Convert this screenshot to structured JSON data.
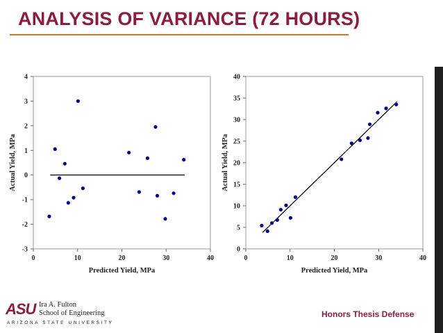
{
  "slide": {
    "title": "ANALYSIS OF VARIANCE (72 HOURS)",
    "footer_right": "Honors Thesis Defense",
    "logo": {
      "mark": "ASU",
      "school_line1": "Ira A. Fulton",
      "school_line2": "School of Engineering",
      "university": "ARIZONA STATE UNIVERSITY"
    }
  },
  "colors": {
    "title": "#8c1d40",
    "rule": "#e36f1e",
    "points": "#00008b",
    "line": "#000000"
  },
  "chart_data": [
    {
      "type": "scatter",
      "title": "",
      "xlabel": "Predicted Yield, MPa",
      "ylabel": "Actual Yield, MPa",
      "xlim": [
        0,
        40
      ],
      "ylim": [
        -3,
        4
      ],
      "xticks": [
        0,
        10,
        20,
        30,
        40
      ],
      "yticks": [
        -3,
        -2,
        -1,
        0,
        1,
        2,
        3,
        4
      ],
      "grid": false,
      "reference_line": {
        "x": [
          3.8,
          34.2
        ],
        "y": [
          0,
          0
        ]
      },
      "series": [
        {
          "x": [
            3.6,
            4.9,
            5.9,
            7.1,
            7.9,
            9.1,
            10.1,
            11.2,
            21.6,
            23.9,
            25.8,
            27.6,
            28.0,
            29.8,
            31.7,
            34.0
          ],
          "y": [
            -1.68,
            1.05,
            -0.13,
            0.46,
            -1.13,
            -0.92,
            3.0,
            -0.54,
            0.91,
            -0.69,
            0.68,
            1.95,
            -0.84,
            -1.78,
            -0.74,
            0.62
          ]
        }
      ]
    },
    {
      "type": "scatter",
      "title": "",
      "xlabel": "Predicted Yield, MPa",
      "ylabel": "Actual Yield, MPa",
      "xlim": [
        0,
        40
      ],
      "ylim": [
        0,
        40
      ],
      "xticks": [
        0,
        10,
        20,
        30,
        40
      ],
      "yticks": [
        0,
        5,
        10,
        15,
        20,
        25,
        30,
        35,
        40
      ],
      "grid": false,
      "reference_line": {
        "x": [
          3.8,
          34.2
        ],
        "y": [
          3.8,
          34.2
        ]
      },
      "series": [
        {
          "x": [
            3.6,
            4.9,
            5.9,
            7.1,
            7.9,
            9.1,
            10.1,
            11.2,
            21.6,
            23.9,
            25.8,
            27.6,
            28.0,
            29.8,
            31.7,
            34.0
          ],
          "y": [
            5.4,
            4.1,
            6.0,
            6.7,
            9.1,
            10.1,
            7.2,
            12.0,
            20.8,
            24.5,
            25.2,
            25.7,
            28.9,
            31.6,
            32.6,
            33.5
          ]
        }
      ]
    }
  ]
}
